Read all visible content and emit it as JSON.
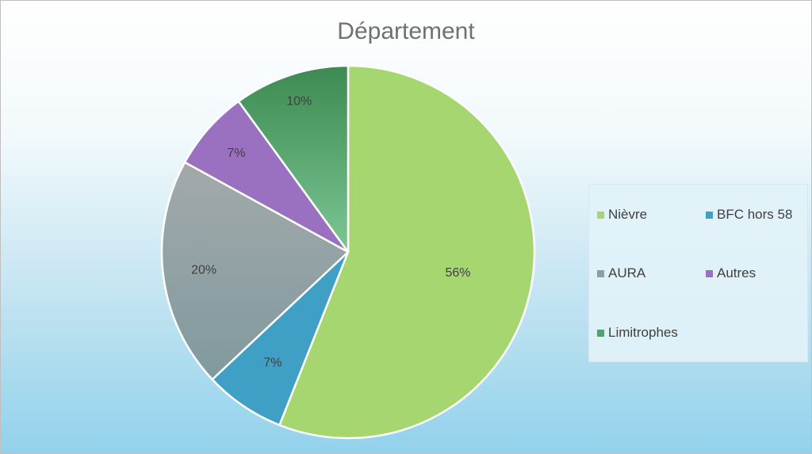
{
  "chart_data": {
    "type": "pie",
    "title": "Département",
    "categories": [
      "Nièvre",
      "BFC hors 58",
      "AURA",
      "Autres",
      "Limitrophes"
    ],
    "values": [
      56,
      7,
      20,
      7,
      10
    ],
    "labels": [
      "56%",
      "7%",
      "20%",
      "7%",
      "10%"
    ],
    "colors": [
      "#a6d66f",
      "#3f9fc5",
      "#8f9ea4",
      "#9a71c1",
      "#52a36f"
    ],
    "start_angle": "12 o'clock",
    "direction": "clockwise",
    "legend_position": "right"
  }
}
